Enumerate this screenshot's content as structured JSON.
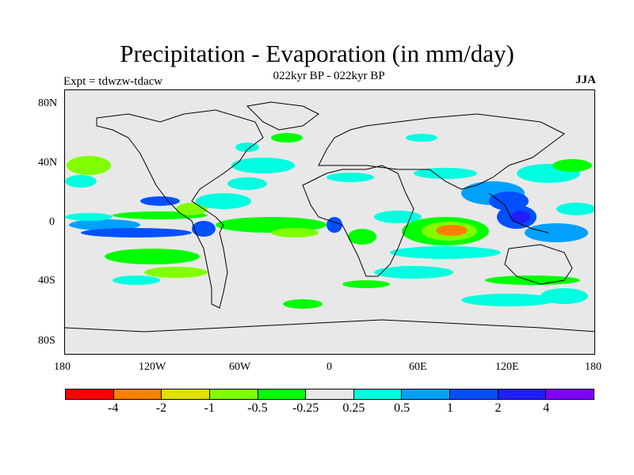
{
  "title": "Precipitation - Evaporation (in mm/day)",
  "subtitle": "022kyr BP - 022kyr BP",
  "left_label": "Expt = tdwzw-tdacw",
  "right_label": "JJA",
  "lat_labels": [
    "80N",
    "40N",
    "0",
    "40S",
    "80S"
  ],
  "lon_labels": [
    "180",
    "120W",
    "60W",
    "0",
    "60E",
    "120E",
    "180"
  ],
  "colorbar": {
    "colors": [
      "#ff0000",
      "#ff8000",
      "#e0e000",
      "#80ff00",
      "#00ff00",
      "#e8e8e8",
      "#00ffe0",
      "#00a0ff",
      "#0050ff",
      "#1e1eff",
      "#8000ff"
    ],
    "labels": [
      "-4",
      "-2",
      "-1",
      "-0.5",
      "-0.25",
      "0.25",
      "0.5",
      "1",
      "2",
      "4"
    ]
  }
}
